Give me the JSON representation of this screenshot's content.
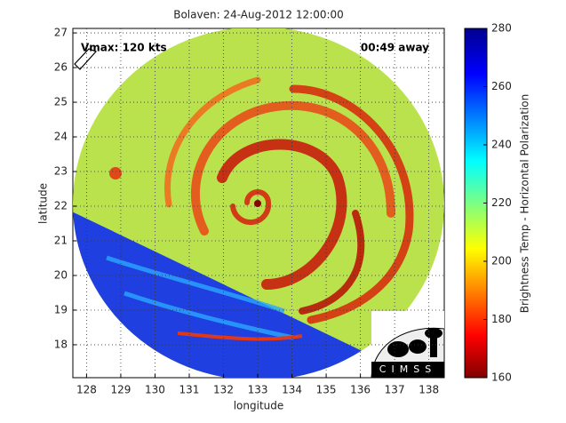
{
  "chart_data": {
    "type": "image",
    "title": "Bolaven: 24-Aug-2012 12:00:00",
    "annotations": [
      "Vmax: 120 kts",
      "00:49 away"
    ],
    "x_label": "longitude",
    "y_label": "latitude",
    "colorbar_label": "Brightness Temp - Horizontal Polarization",
    "logo_text": "CIMSS",
    "xlim": [
      127.6,
      138.45
    ],
    "xticks": [
      128,
      129,
      130,
      131,
      132,
      133,
      134,
      135,
      136,
      137,
      138
    ],
    "ylim": [
      17.05,
      27.13
    ],
    "yticks": [
      18,
      19,
      20,
      21,
      22,
      23,
      24,
      25,
      26,
      27
    ],
    "clim": [
      160,
      280
    ],
    "cticks": [
      160,
      180,
      200,
      220,
      240,
      260,
      280
    ],
    "grid": true
  }
}
